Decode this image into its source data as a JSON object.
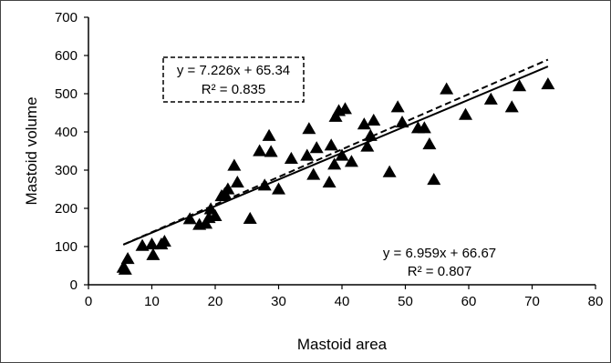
{
  "chart_data": {
    "type": "scatter",
    "xlabel": "Mastoid area",
    "ylabel": "Mastoid volume",
    "xlim": [
      0,
      80
    ],
    "ylim": [
      0,
      700
    ],
    "x_ticks": [
      "0",
      "10",
      "20",
      "30",
      "40",
      "50",
      "60",
      "70",
      "80"
    ],
    "y_ticks": [
      "0",
      "100",
      "200",
      "300",
      "400",
      "500",
      "600",
      "700"
    ],
    "grid": false,
    "legend": "none",
    "marker": "filled-triangle",
    "marker_color": "#000000",
    "points": [
      [
        5.5,
        45
      ],
      [
        5.8,
        40
      ],
      [
        6.2,
        68
      ],
      [
        8.5,
        102
      ],
      [
        10.0,
        106
      ],
      [
        10.2,
        78
      ],
      [
        11.5,
        106
      ],
      [
        12.0,
        113
      ],
      [
        16.0,
        172
      ],
      [
        17.5,
        157
      ],
      [
        18.5,
        160
      ],
      [
        19.0,
        175
      ],
      [
        19.3,
        198
      ],
      [
        20.0,
        180
      ],
      [
        21.0,
        232
      ],
      [
        21.5,
        238
      ],
      [
        22.0,
        250
      ],
      [
        23.0,
        312
      ],
      [
        23.5,
        268
      ],
      [
        25.5,
        173
      ],
      [
        27.0,
        350
      ],
      [
        27.8,
        260
      ],
      [
        28.5,
        390
      ],
      [
        28.8,
        348
      ],
      [
        30.0,
        250
      ],
      [
        32.0,
        330
      ],
      [
        34.5,
        338
      ],
      [
        34.8,
        408
      ],
      [
        35.5,
        288
      ],
      [
        36.0,
        358
      ],
      [
        38.0,
        268
      ],
      [
        38.3,
        365
      ],
      [
        38.8,
        315
      ],
      [
        39.0,
        440
      ],
      [
        39.5,
        455
      ],
      [
        40.0,
        338
      ],
      [
        40.5,
        460
      ],
      [
        41.5,
        322
      ],
      [
        43.5,
        420
      ],
      [
        44.0,
        362
      ],
      [
        44.5,
        390
      ],
      [
        45.0,
        430
      ],
      [
        47.5,
        295
      ],
      [
        48.8,
        465
      ],
      [
        49.5,
        425
      ],
      [
        52.0,
        410
      ],
      [
        53.0,
        410
      ],
      [
        53.8,
        368
      ],
      [
        54.5,
        275
      ],
      [
        56.5,
        512
      ],
      [
        59.5,
        445
      ],
      [
        63.5,
        485
      ],
      [
        66.8,
        465
      ],
      [
        68.0,
        520
      ],
      [
        72.5,
        525
      ]
    ],
    "trendlines": [
      {
        "style": "dashed",
        "slope": 7.226,
        "intercept": 65.34,
        "x_range": [
          5.5,
          72.5
        ],
        "equation": "y = 7.226x + 65.34",
        "r2": "R² = 0.835",
        "label_box": "dashed"
      },
      {
        "style": "solid",
        "slope": 6.959,
        "intercept": 66.67,
        "x_range": [
          5.5,
          72.5
        ],
        "equation": "y = 6.959x + 66.67",
        "r2": "R² = 0.807",
        "label_box": "none"
      }
    ]
  }
}
